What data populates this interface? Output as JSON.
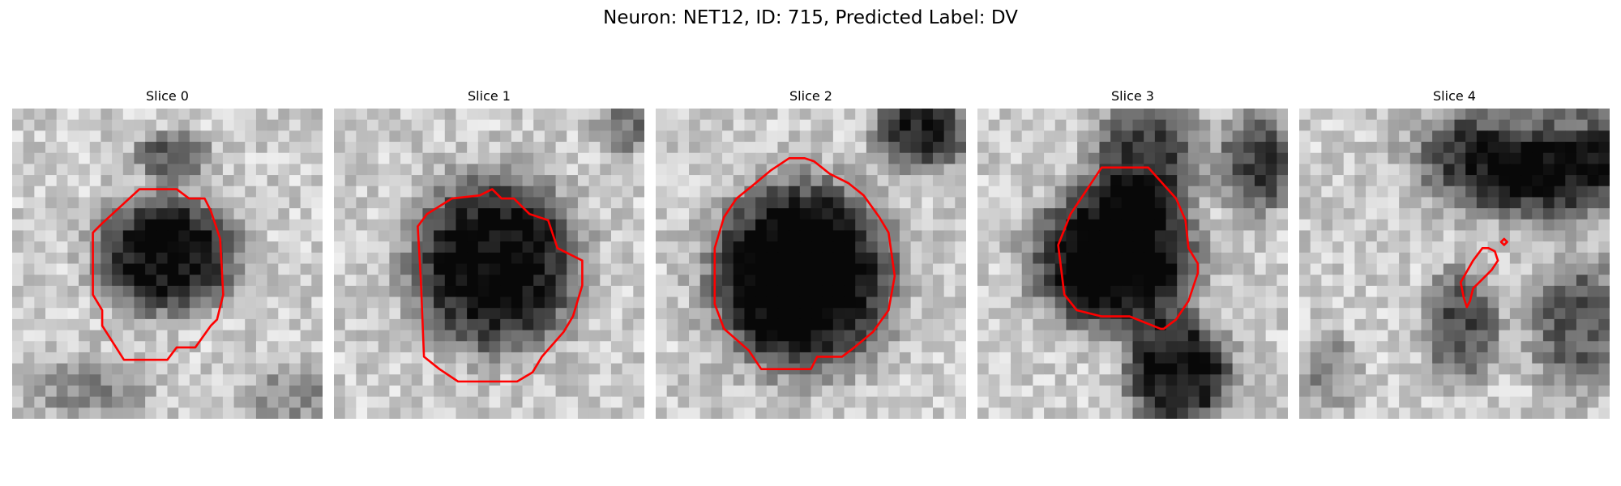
{
  "figure": {
    "title": "Neuron: NET12, ID: 715, Predicted Label: DV"
  },
  "contour_color": "#ff0000",
  "grid_size": 28,
  "panels": [
    {
      "title": "Slice 0"
    },
    {
      "title": "Slice 1"
    },
    {
      "title": "Slice 2"
    },
    {
      "title": "Slice 3"
    },
    {
      "title": "Slice 4"
    }
  ]
}
